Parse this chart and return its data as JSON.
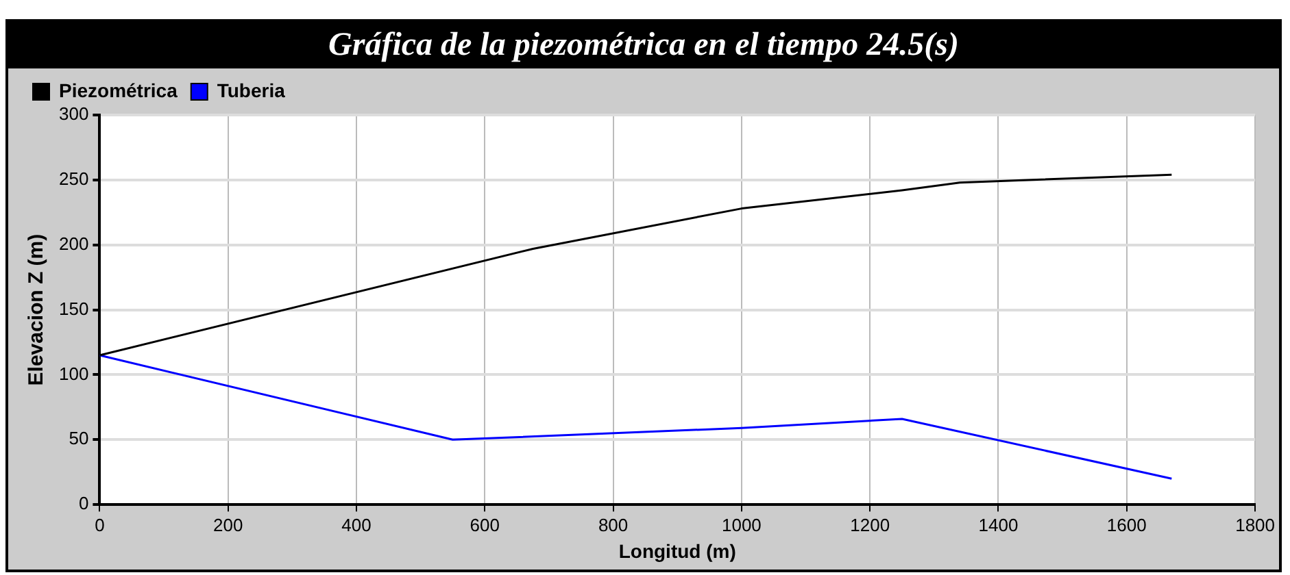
{
  "chart_data": {
    "type": "line",
    "title": "Gráfica de la piezométrica en el tiempo 24.5(s)",
    "xlabel": "Longitud (m)",
    "ylabel": "Elevacion Z (m)",
    "series": [
      {
        "name": "Piezométrica",
        "color": "#000000",
        "x": [
          0,
          675,
          1000,
          1250,
          1340,
          1670
        ],
        "values": [
          115,
          197,
          228,
          242,
          248,
          254
        ]
      },
      {
        "name": "Tuberia",
        "color": "#0000ff",
        "x": [
          0,
          550,
          1000,
          1250,
          1670
        ],
        "values": [
          115,
          50,
          59,
          66,
          20
        ]
      }
    ],
    "xlim": [
      0,
      1800
    ],
    "xticks": [
      0,
      200,
      400,
      600,
      800,
      1000,
      1200,
      1400,
      1600,
      1800
    ],
    "ylim": [
      0,
      300
    ],
    "yticks": [
      0,
      50,
      100,
      150,
      200,
      250,
      300
    ],
    "grid": true,
    "legend": "top left",
    "marker": "none",
    "line_style": "solid"
  }
}
